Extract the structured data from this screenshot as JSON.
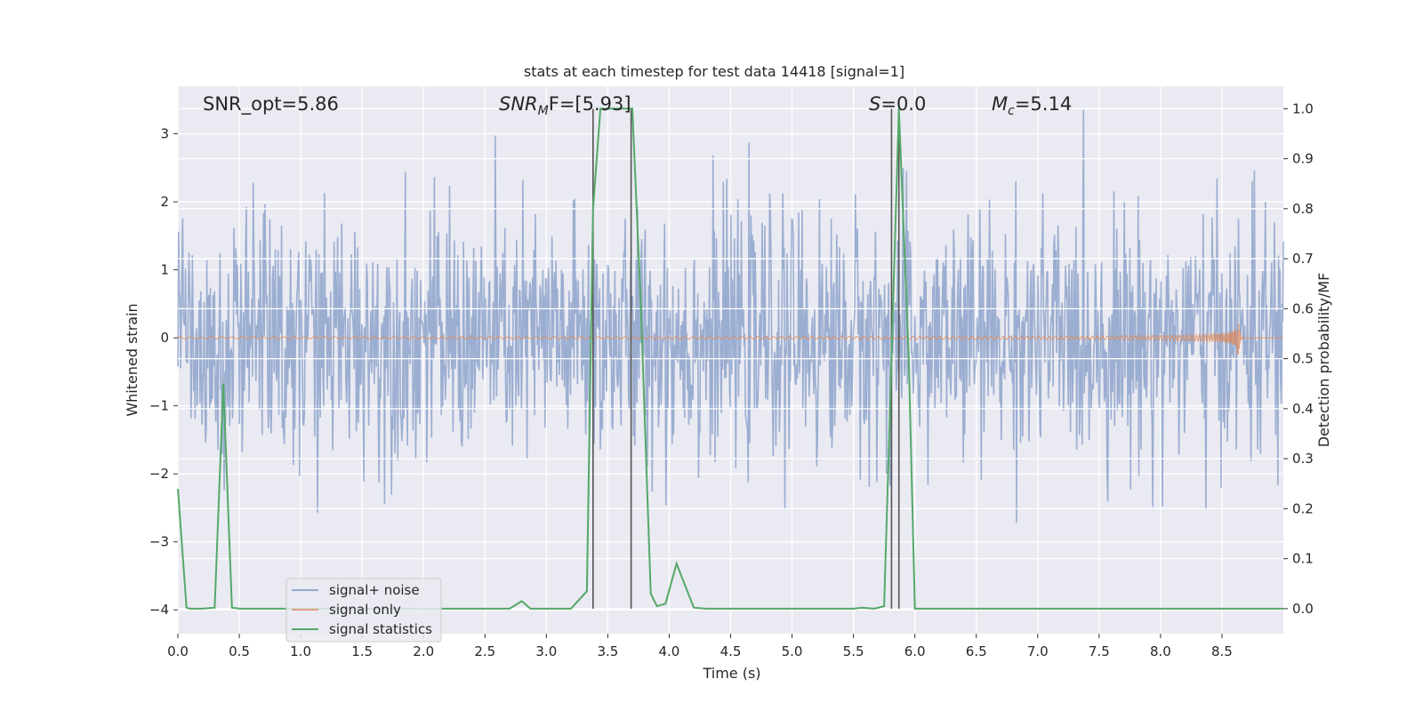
{
  "chart_data": {
    "type": "line",
    "title": "stats at each timestep for test data 14418 [signal=1]",
    "xlabel": "Time (s)",
    "ylabel": "Whitened strain",
    "ylabel_right": "Detection probability/MF",
    "xlim": [
      0,
      9
    ],
    "ylim": [
      -4.35,
      3.7
    ],
    "ylim_right": [
      -0.05,
      1.045
    ],
    "x_ticks": [
      0.0,
      0.5,
      1.0,
      1.5,
      2.0,
      2.5,
      3.0,
      3.5,
      4.0,
      4.5,
      5.0,
      5.5,
      6.0,
      6.5,
      7.0,
      7.5,
      8.0,
      8.5
    ],
    "x_tick_labels": [
      "0.0",
      "0.5",
      "1.0",
      "1.5",
      "2.0",
      "2.5",
      "3.0",
      "3.5",
      "4.0",
      "4.5",
      "5.0",
      "5.5",
      "6.0",
      "6.5",
      "7.0",
      "7.5",
      "8.0",
      "8.5"
    ],
    "y_ticks": [
      -4,
      -3,
      -2,
      -1,
      0,
      1,
      2,
      3
    ],
    "y_tick_labels": [
      "−4",
      "−3",
      "−2",
      "−1",
      "0",
      "1",
      "2",
      "3"
    ],
    "y_ticks_right": [
      0.0,
      0.1,
      0.2,
      0.3,
      0.4,
      0.5,
      0.6,
      0.7,
      0.8,
      0.9,
      1.0
    ],
    "y_tick_labels_right": [
      "0.0",
      "0.1",
      "0.2",
      "0.3",
      "0.4",
      "0.5",
      "0.6",
      "0.7",
      "0.8",
      "0.9",
      "1.0"
    ],
    "annotations": {
      "snr_opt": "SNR_opt=5.86",
      "snr_mf_base": "SNR",
      "snr_mf_sub": "M",
      "snr_mf_rest": "F=[5.93]",
      "s_base": "S",
      "s_rest": "=0.0",
      "mc_base": "M",
      "mc_sub": "c",
      "mc_rest": "=5.14"
    },
    "legend": {
      "position": "lower-left",
      "entries": [
        "signal+ noise",
        "signal only",
        "signal statistics"
      ]
    },
    "colors": {
      "signal_noise": "#4c72b0",
      "signal_only": "#dd8452",
      "signal_stats": "#55a868",
      "background": "#eaeaf2",
      "grid": "#ffffff",
      "vline": "#555555"
    },
    "series": [
      {
        "name": "signal+ noise",
        "axis": "left",
        "description": "whitened noisy strain, approx Gaussian noise with std ~0.9",
        "noise_std": 0.9,
        "n_samples": 1600
      },
      {
        "name": "signal only",
        "axis": "left",
        "description": "gravitational wave chirp growing to merger",
        "merger_time": 8.63,
        "peak_amplitude": 0.62
      },
      {
        "name": "signal statistics",
        "axis": "right",
        "x": [
          0.0,
          0.07,
          0.1,
          0.2,
          0.3,
          0.37,
          0.44,
          0.5,
          1.0,
          2.0,
          2.7,
          2.8,
          2.87,
          3.0,
          3.2,
          3.33,
          3.38,
          3.44,
          3.5,
          3.6,
          3.7,
          3.77,
          3.85,
          3.9,
          3.97,
          4.06,
          4.2,
          4.3,
          5.0,
          5.5,
          5.57,
          5.67,
          5.75,
          5.87,
          5.95,
          6.0,
          7.0,
          8.0,
          9.0
        ],
        "y": [
          0.24,
          0.002,
          0.0,
          0.0,
          0.002,
          0.45,
          0.002,
          0.0,
          0.0,
          0.0,
          0.0,
          0.015,
          0.0,
          0.0,
          0.0,
          0.035,
          0.8,
          1.0,
          1.0,
          1.0,
          1.0,
          0.6,
          0.03,
          0.005,
          0.01,
          0.09,
          0.002,
          0.0,
          0.0,
          0.0,
          0.002,
          0.0,
          0.005,
          1.0,
          0.5,
          0.0,
          0.0,
          0.0,
          0.0
        ]
      }
    ],
    "vertical_lines": [
      3.38,
      3.69,
      5.81,
      5.87
    ]
  }
}
